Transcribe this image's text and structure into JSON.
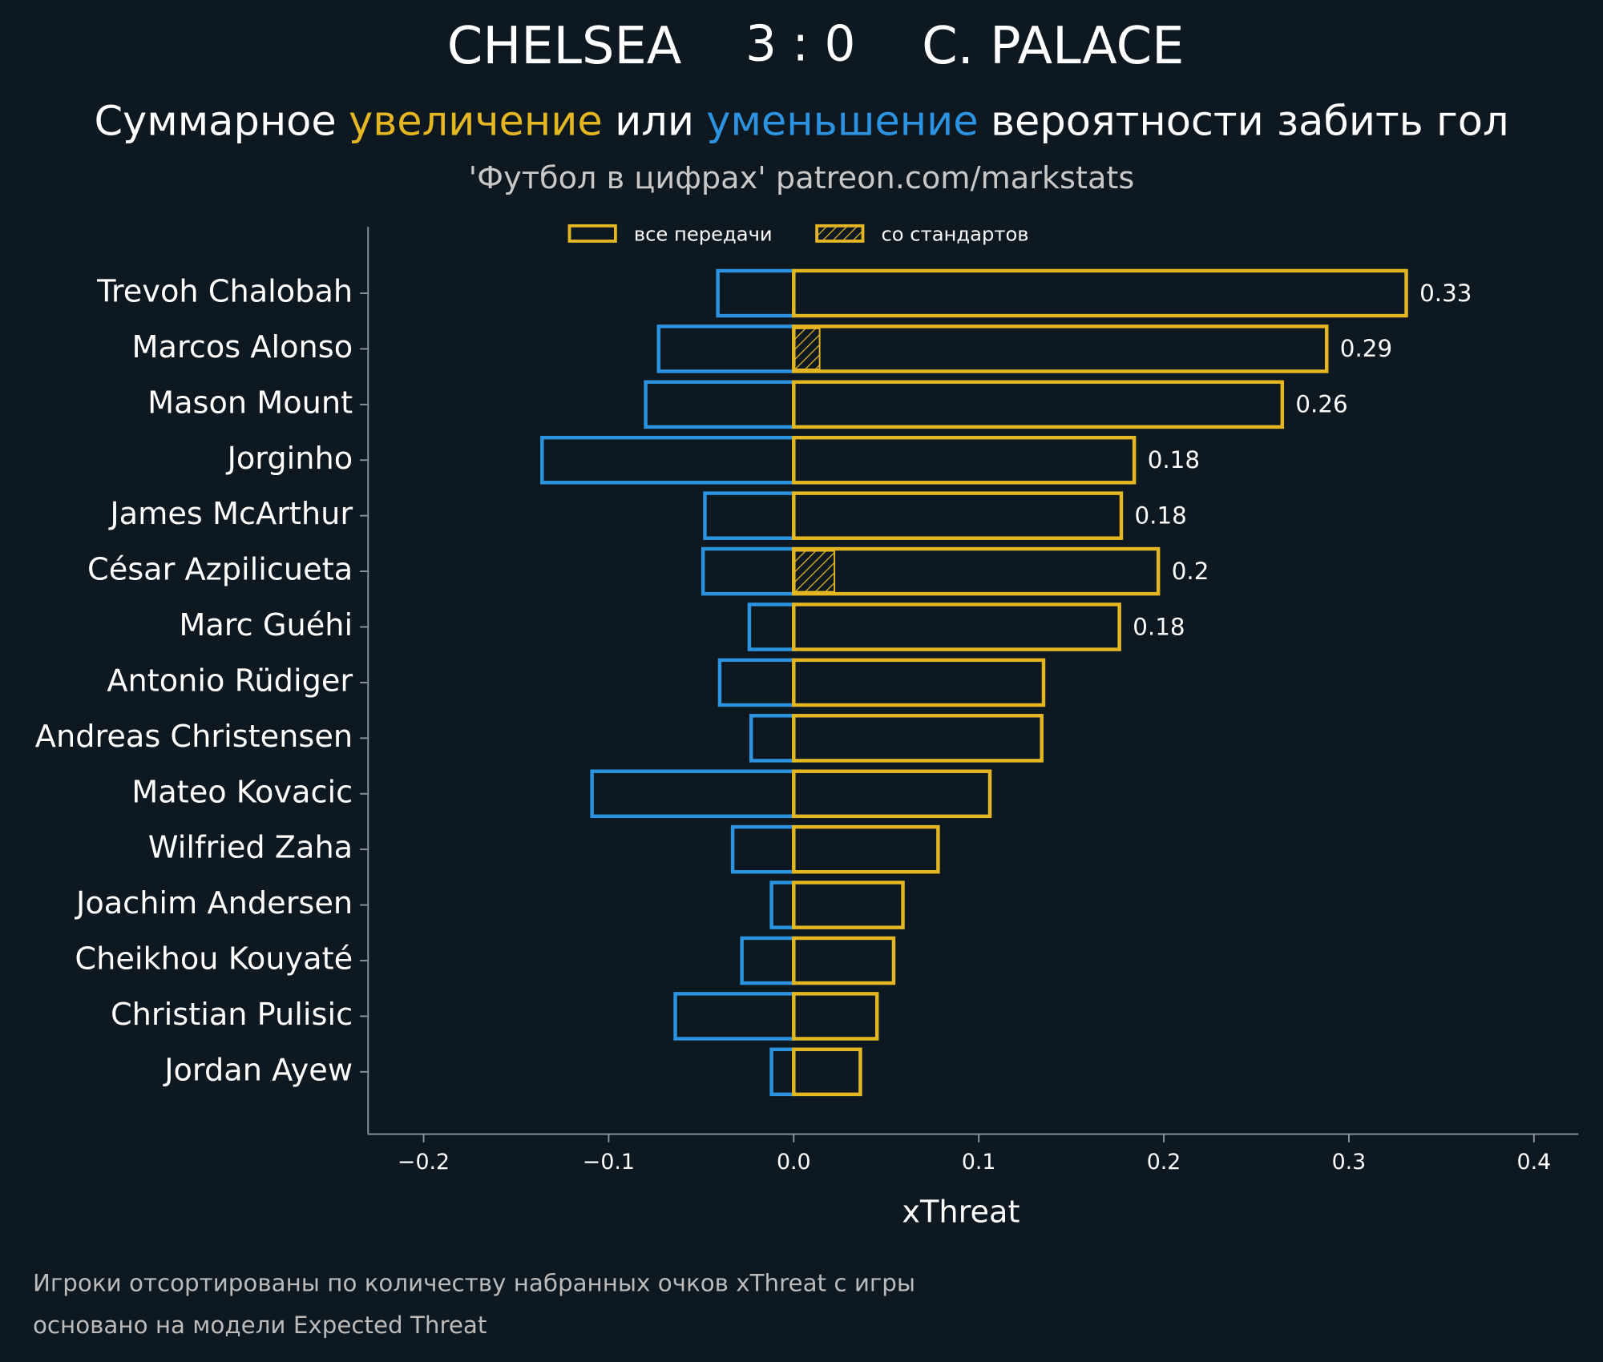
{
  "chart_data": {
    "type": "diverging_bar",
    "title": {
      "home": "CHELSEA",
      "score": "3 : 0",
      "away": "C. PALACE"
    },
    "subtitle_parts": [
      "Суммарное",
      "увеличение",
      "или",
      "уменьшение",
      "вероятности забить гол"
    ],
    "source": "'Футбол в цифрах' patreon.com/markstats",
    "x_label": "xThreat",
    "footnotes": [
      "Игроки отсортированы по количеству набранных очков xThreat с игры",
      "основано на модели Expected Threat"
    ],
    "categories": [
      "Trevoh Chalobah",
      "Marcos Alonso",
      "Mason Mount",
      "Jorginho",
      "James McArthur",
      "César Azpilicueta",
      "Marc Guéhi",
      "Antonio Rüdiger",
      "Andreas Christensen",
      "Mateo Kovacic",
      "Wilfried Zaha",
      "Joachim Andersen",
      "Cheikhou Kouyaté",
      "Christian Pulisic",
      "Jordan Ayew"
    ],
    "series": [
      {
        "name": "все передачи",
        "color": "#e3b622",
        "values": [
          0.331,
          0.288,
          0.264,
          0.184,
          0.177,
          0.197,
          0.176,
          0.135,
          0.134,
          0.106,
          0.078,
          0.059,
          0.054,
          0.045,
          0.036
        ],
        "value_labels": [
          "0.33",
          "0.29",
          "0.26",
          "0.18",
          "0.18",
          "0.2",
          "0.18",
          null,
          null,
          null,
          null,
          null,
          null,
          null,
          null
        ]
      },
      {
        "name": "со стандартов",
        "color": "#e3b622",
        "hatch": true,
        "values": [
          0,
          0.014,
          0,
          0,
          0,
          0.022,
          0,
          0,
          0,
          0,
          0,
          0,
          0,
          0,
          0
        ]
      },
      {
        "color": "#2b93e0",
        "values": [
          -0.041,
          -0.073,
          -0.08,
          -0.136,
          -0.048,
          -0.049,
          -0.024,
          -0.04,
          -0.023,
          -0.109,
          -0.033,
          -0.012,
          -0.028,
          -0.064,
          -0.012
        ]
      }
    ],
    "xlim": [
      -0.23,
      0.424
    ],
    "xticks": [
      {
        "value": -0.2,
        "label": "−0.2"
      },
      {
        "value": -0.1,
        "label": "−0.1"
      },
      {
        "value": 0,
        "label": "0.0"
      },
      0.1,
      0.2,
      0.3,
      0.4
    ],
    "legend": "top"
  }
}
